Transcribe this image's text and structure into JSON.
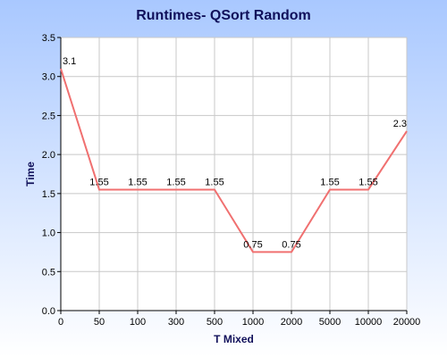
{
  "colors": {
    "background_top": "#a9c8ff",
    "background_bottom": "#ffffff",
    "plot_background": "#ffffff",
    "title": "#10105a",
    "axis_title": "#10105a",
    "grid": "#c8c8c8",
    "series_line": "#f07070"
  },
  "chart_data": {
    "type": "line",
    "title": "Runtimes- QSort Random",
    "xlabel": "T Mixed",
    "ylabel": "Time",
    "categories": [
      "0",
      "50",
      "100",
      "300",
      "500",
      "1000",
      "2000",
      "5000",
      "10000",
      "20000"
    ],
    "series": [
      {
        "values": [
          3.1,
          1.55,
          1.55,
          1.55,
          1.55,
          0.75,
          0.75,
          1.55,
          1.55,
          2.3
        ],
        "labels": [
          "3.1",
          "1.55",
          "1.55",
          "1.55",
          "1.55",
          "0.75",
          "0.75",
          "1.55",
          "1.55",
          "2.3"
        ]
      }
    ],
    "ylim": [
      0,
      3.5
    ],
    "yticks": [
      "0.0",
      "0.5",
      "1.0",
      "1.5",
      "2.0",
      "2.5",
      "3.0",
      "3.5"
    ],
    "grid": true,
    "legend": "none"
  }
}
